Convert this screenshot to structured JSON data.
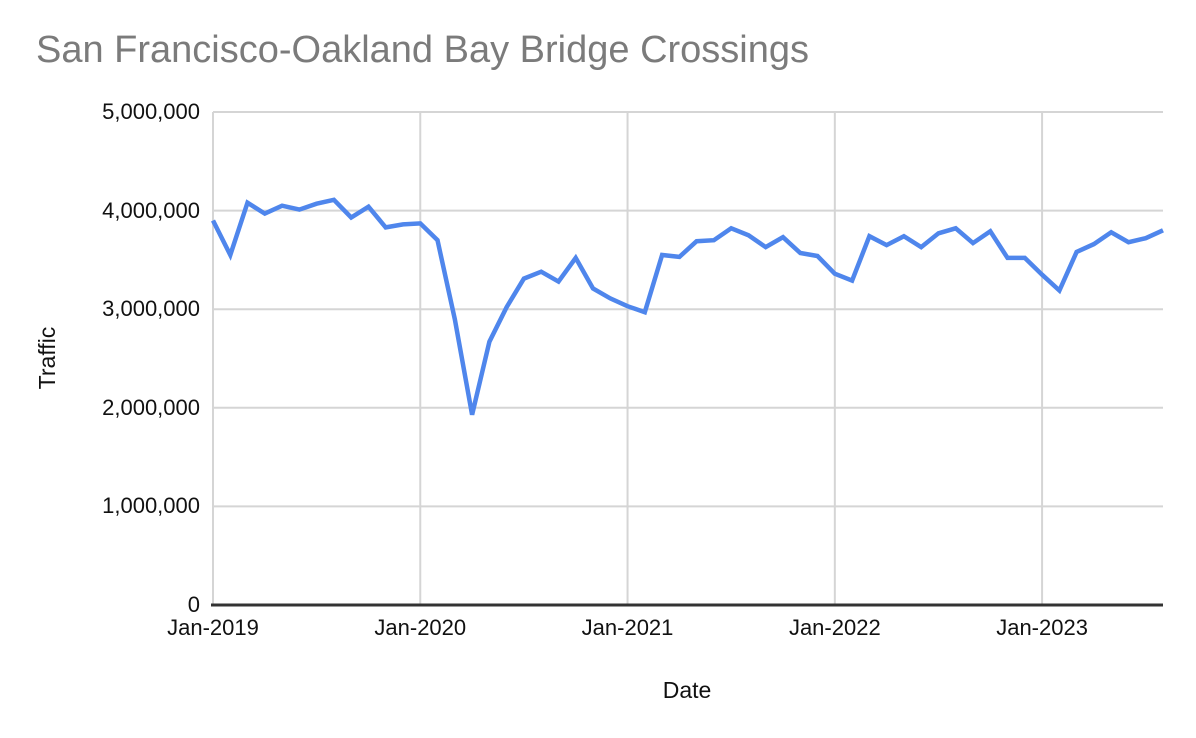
{
  "title": "San Francisco-Oakland Bay Bridge Crossings",
  "colors": {
    "series_line": "#4f86ec",
    "gridline": "#d5d5d5",
    "axis_line": "#333333",
    "title_text": "#7b7b7b",
    "tick_text": "#111111"
  },
  "chart_data": {
    "type": "line",
    "title": "San Francisco-Oakland Bay Bridge Crossings",
    "xlabel": "Date",
    "ylabel": "Traffic",
    "ylim": [
      0,
      5000000
    ],
    "grid": true,
    "legend": false,
    "y_tick_values": [
      0,
      1000000,
      2000000,
      3000000,
      4000000,
      5000000
    ],
    "y_tick_labels": [
      "0",
      "1,000,000",
      "2,000,000",
      "3,000,000",
      "4,000,000",
      "5,000,000"
    ],
    "x_tick_labels": [
      "Jan-2019",
      "Jan-2020",
      "Jan-2021",
      "Jan-2022",
      "Jan-2023"
    ],
    "x_tick_month_index": [
      0,
      12,
      24,
      36,
      48
    ],
    "x": [
      "Jan-2019",
      "Feb-2019",
      "Mar-2019",
      "Apr-2019",
      "May-2019",
      "Jun-2019",
      "Jul-2019",
      "Aug-2019",
      "Sep-2019",
      "Oct-2019",
      "Nov-2019",
      "Dec-2019",
      "Jan-2020",
      "Feb-2020",
      "Mar-2020",
      "Apr-2020",
      "May-2020",
      "Jun-2020",
      "Jul-2020",
      "Aug-2020",
      "Sep-2020",
      "Oct-2020",
      "Nov-2020",
      "Dec-2020",
      "Jan-2021",
      "Feb-2021",
      "Mar-2021",
      "Apr-2021",
      "May-2021",
      "Jun-2021",
      "Jul-2021",
      "Aug-2021",
      "Sep-2021",
      "Oct-2021",
      "Nov-2021",
      "Dec-2021",
      "Jan-2022",
      "Feb-2022",
      "Mar-2022",
      "Apr-2022",
      "May-2022",
      "Jun-2022",
      "Jul-2022",
      "Aug-2022",
      "Sep-2022",
      "Oct-2022",
      "Nov-2022",
      "Dec-2022",
      "Jan-2023",
      "Feb-2023",
      "Mar-2023",
      "Apr-2023",
      "May-2023",
      "Jun-2023",
      "Jul-2023",
      "Aug-2023"
    ],
    "series": [
      {
        "name": "Traffic",
        "values": [
          3900000,
          3550000,
          4080000,
          3970000,
          4050000,
          4010000,
          4070000,
          4110000,
          3930000,
          4040000,
          3830000,
          3860000,
          3870000,
          3700000,
          2900000,
          1930000,
          2670000,
          3020000,
          3310000,
          3380000,
          3280000,
          3520000,
          3210000,
          3110000,
          3030000,
          2970000,
          3550000,
          3530000,
          3690000,
          3700000,
          3820000,
          3750000,
          3630000,
          3730000,
          3570000,
          3540000,
          3360000,
          3290000,
          3740000,
          3650000,
          3740000,
          3630000,
          3770000,
          3820000,
          3670000,
          3790000,
          3520000,
          3520000,
          3350000,
          3190000,
          3580000,
          3660000,
          3780000,
          3680000,
          3720000,
          3800000
        ]
      }
    ]
  }
}
